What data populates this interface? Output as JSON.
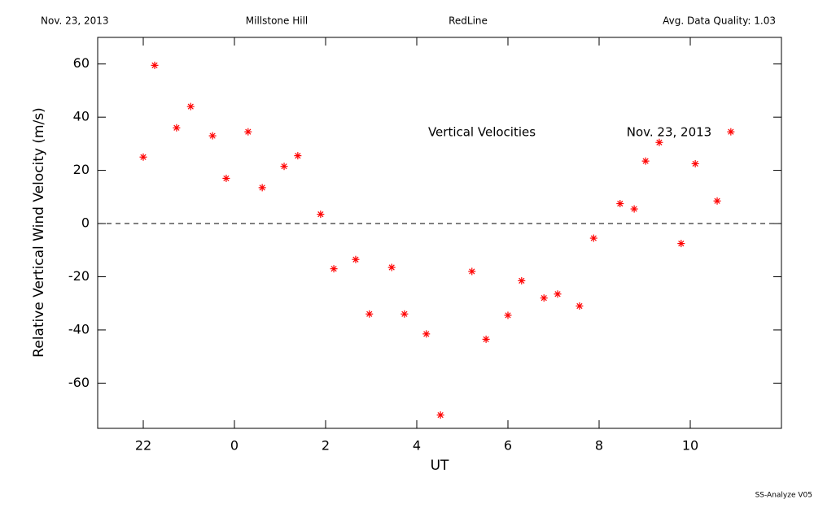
{
  "chart_data": {
    "type": "scatter",
    "header": [
      "Nov. 23, 2013",
      "Millstone Hill",
      "RedLine",
      "Avg. Data Quality: 1.03"
    ],
    "annotations": [
      "Vertical Velocities",
      "Nov. 23, 2013"
    ],
    "xlabel": "UT",
    "ylabel": "Relative Vertical Wind Velocity (m/s)",
    "footer": "SS-Analyze V05",
    "xlim": [
      -3,
      12
    ],
    "ylim": [
      -77,
      70
    ],
    "xticks": [
      {
        "value": -2,
        "label": "22"
      },
      0,
      2,
      4,
      6,
      8,
      10
    ],
    "yticks": [
      -60,
      -40,
      -20,
      0,
      20,
      40,
      60
    ],
    "hline": 0,
    "series": [
      {
        "color": "#ff0000",
        "x": [
          -2.0,
          -1.75,
          -1.27,
          -0.96,
          -0.48,
          -0.18,
          0.3,
          0.61,
          1.09,
          1.39,
          1.89,
          2.18,
          2.66,
          2.96,
          3.45,
          3.73,
          4.21,
          4.52,
          5.21,
          5.52,
          6.0,
          6.3,
          6.79,
          7.09,
          7.57,
          7.88,
          8.46,
          8.77,
          9.02,
          9.32,
          9.8,
          10.11,
          10.59,
          10.89
        ],
        "values": [
          25,
          59.5,
          36,
          44,
          33,
          17,
          34.5,
          13.5,
          21.5,
          25.5,
          3.5,
          -17,
          -13.5,
          -34,
          -16.5,
          -34,
          -41.5,
          -72,
          -18,
          -43.5,
          -34.5,
          -21.5,
          -28,
          -26.5,
          -31,
          -5.5,
          7.5,
          5.5,
          23.5,
          30.5,
          -7.5,
          22.5,
          8.5,
          34.5
        ]
      }
    ]
  }
}
